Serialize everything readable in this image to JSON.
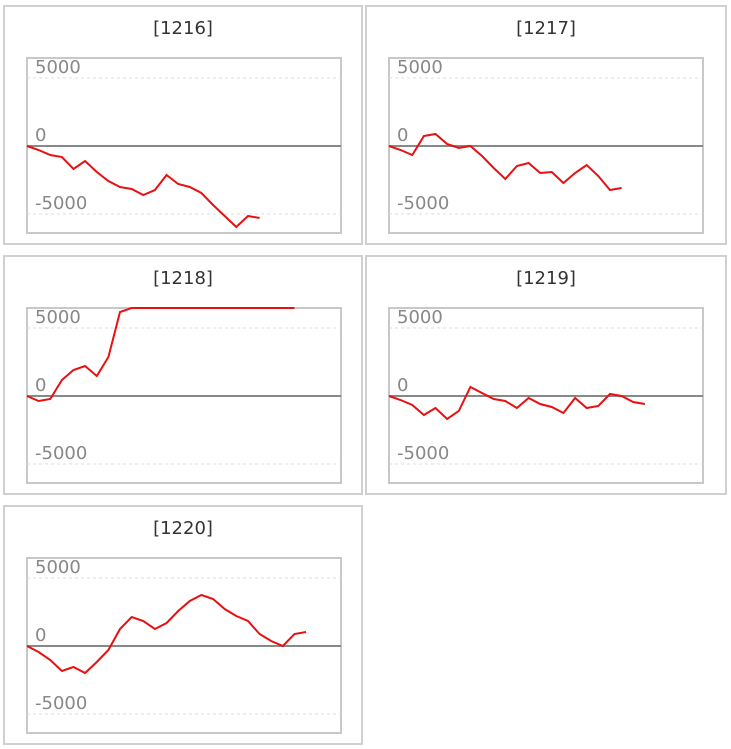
{
  "chart_data": [
    {
      "type": "line",
      "title": "[1216]",
      "color": "#e81010",
      "xlim": [
        0,
        27
      ],
      "ylim": [
        -6400,
        6470
      ],
      "yticks": [
        -5000,
        0,
        5000
      ],
      "grid": true,
      "values": [
        0,
        -294,
        -662,
        -809,
        -1691,
        -1103,
        -1912,
        -2574,
        -3015,
        -3162,
        -3603,
        -3235,
        -2132,
        -2794,
        -3015,
        -3456,
        -4338,
        -5147,
        -5956,
        -5147,
        -5294
      ]
    },
    {
      "type": "line",
      "title": "[1217]",
      "color": "#e81010",
      "xlim": [
        0,
        27
      ],
      "ylim": [
        -6400,
        6470
      ],
      "yticks": [
        -5000,
        0,
        5000
      ],
      "grid": true,
      "values": [
        0,
        -294,
        -662,
        735,
        882,
        147,
        -147,
        0,
        -735,
        -1618,
        -2426,
        -1471,
        -1250,
        -1985,
        -1912,
        -2721,
        -1985,
        -1397,
        -2206,
        -3235,
        -3088
      ]
    },
    {
      "type": "line",
      "title": "[1218]",
      "color": "#e81010",
      "xlim": [
        0,
        27
      ],
      "ylim": [
        -6400,
        6470
      ],
      "yticks": [
        -5000,
        0,
        5000
      ],
      "grid": true,
      "values": [
        0,
        -368,
        -221,
        1176,
        1912,
        2206,
        1471,
        2868,
        6176,
        6470,
        6470,
        6470,
        6470,
        6470,
        6470,
        6470,
        6470,
        6470,
        6470,
        6470,
        6470,
        6470,
        6470,
        6470
      ]
    },
    {
      "type": "line",
      "title": "[1219]",
      "color": "#e81010",
      "xlim": [
        0,
        27
      ],
      "ylim": [
        -6400,
        6470
      ],
      "yticks": [
        -5000,
        0,
        5000
      ],
      "grid": true,
      "values": [
        0,
        -294,
        -662,
        -1397,
        -882,
        -1691,
        -1103,
        662,
        221,
        -221,
        -368,
        -882,
        -147,
        -588,
        -809,
        -1250,
        -147,
        -882,
        -735,
        147,
        0,
        -441,
        -588
      ]
    },
    {
      "type": "line",
      "title": "[1220]",
      "color": "#e81010",
      "xlim": [
        0,
        27
      ],
      "ylim": [
        -6400,
        6470
      ],
      "yticks": [
        -5000,
        0,
        5000
      ],
      "grid": true,
      "values": [
        0,
        -441,
        -1029,
        -1838,
        -1544,
        -1985,
        -1176,
        -294,
        1250,
        2132,
        1838,
        1250,
        1691,
        2574,
        3309,
        3750,
        3456,
        2721,
        2206,
        1838,
        882,
        368,
        0,
        882,
        1029
      ]
    }
  ]
}
